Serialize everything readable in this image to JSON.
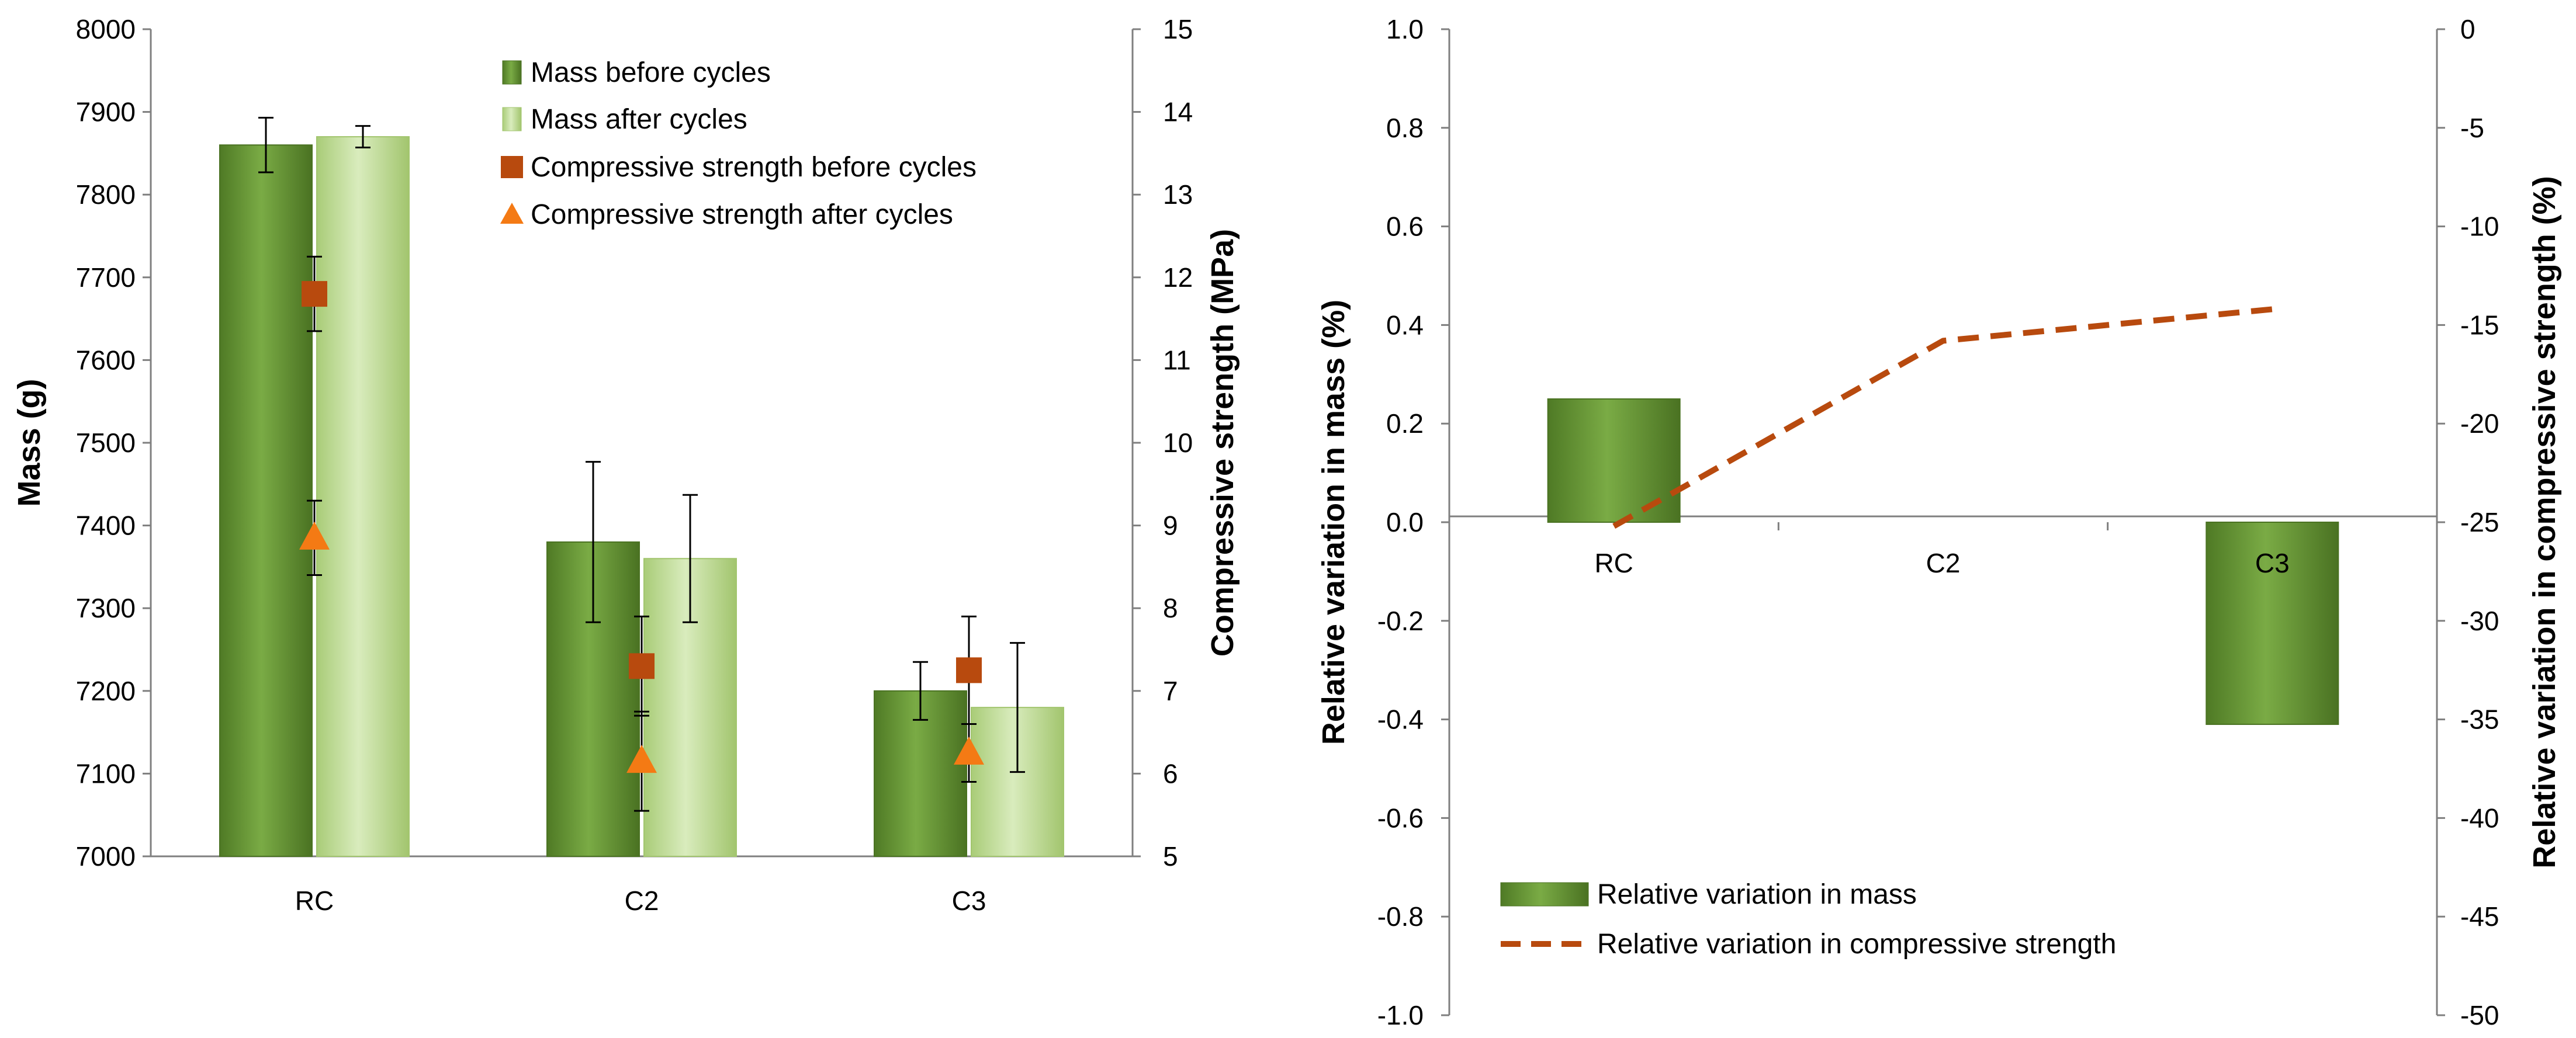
{
  "chart_data": [
    {
      "type": "bar",
      "title": "",
      "xlabel": "",
      "ylabel": "Mass (g)",
      "y2label": "Compressive strength (MPa)",
      "ylim": [
        7000,
        8000
      ],
      "yticks": [
        "7000",
        "7100",
        "7200",
        "7300",
        "7400",
        "7500",
        "7600",
        "7700",
        "7800",
        "7900",
        "8000"
      ],
      "y2lim": [
        5,
        15
      ],
      "y2ticks": [
        "5",
        "6",
        "7",
        "8",
        "9",
        "10",
        "11",
        "12",
        "13",
        "14",
        "15"
      ],
      "categories": [
        "RC",
        "C2",
        "C3"
      ],
      "grid": false,
      "legend_position": "top-right",
      "series": [
        {
          "name": "Mass before cycles",
          "kind": "bar",
          "axis": "left",
          "values": [
            7860,
            7380,
            7200
          ],
          "errors": [
            33,
            97,
            35
          ],
          "color": "#6a9a38"
        },
        {
          "name": "Mass after cycles",
          "kind": "bar",
          "axis": "left",
          "values": [
            7870,
            7360,
            7180
          ],
          "errors": [
            13,
            77,
            78
          ],
          "color": "#c4df9b"
        },
        {
          "name": "Compressive strength before cycles",
          "kind": "marker-square",
          "axis": "right",
          "values": [
            11.8,
            7.3,
            7.25
          ],
          "errors": [
            0.45,
            0.6,
            0.65
          ],
          "color": "#b84a0e"
        },
        {
          "name": "Compressive strength after cycles",
          "kind": "marker-triangle",
          "axis": "right",
          "values": [
            8.85,
            6.15,
            6.25
          ],
          "errors": [
            0.45,
            0.6,
            0.35
          ],
          "color": "#f47a14"
        }
      ]
    },
    {
      "type": "bar",
      "title": "",
      "xlabel": "",
      "ylabel": "Relative variation in mass  (%)",
      "y2label": "Relative variation in compressive strength (%)",
      "ylim": [
        -1.0,
        1.0
      ],
      "yticks": [
        "-1.0",
        "-0.8",
        "-0.6",
        "-0.4",
        "-0.2",
        "0.0",
        "0.2",
        "0.4",
        "0.6",
        "0.8",
        "1.0"
      ],
      "y2lim": [
        -50,
        0
      ],
      "y2ticks": [
        "-50",
        "-45",
        "-40",
        "-35",
        "-30",
        "-25",
        "-20",
        "-15",
        "-10",
        "-5",
        "0"
      ],
      "categories": [
        "RC",
        "C2",
        "C3"
      ],
      "grid": false,
      "legend_position": "bottom-left",
      "series": [
        {
          "name": "Relative variation in mass",
          "kind": "bar",
          "axis": "left",
          "values": [
            0.25,
            0.0,
            -0.41
          ],
          "color": "#6a9a38"
        },
        {
          "name": "Relative variation in compressive strength",
          "kind": "dashed-line",
          "axis": "right",
          "values": [
            -25.2,
            -15.8,
            -14.2
          ],
          "color": "#b84a0e"
        }
      ]
    }
  ]
}
